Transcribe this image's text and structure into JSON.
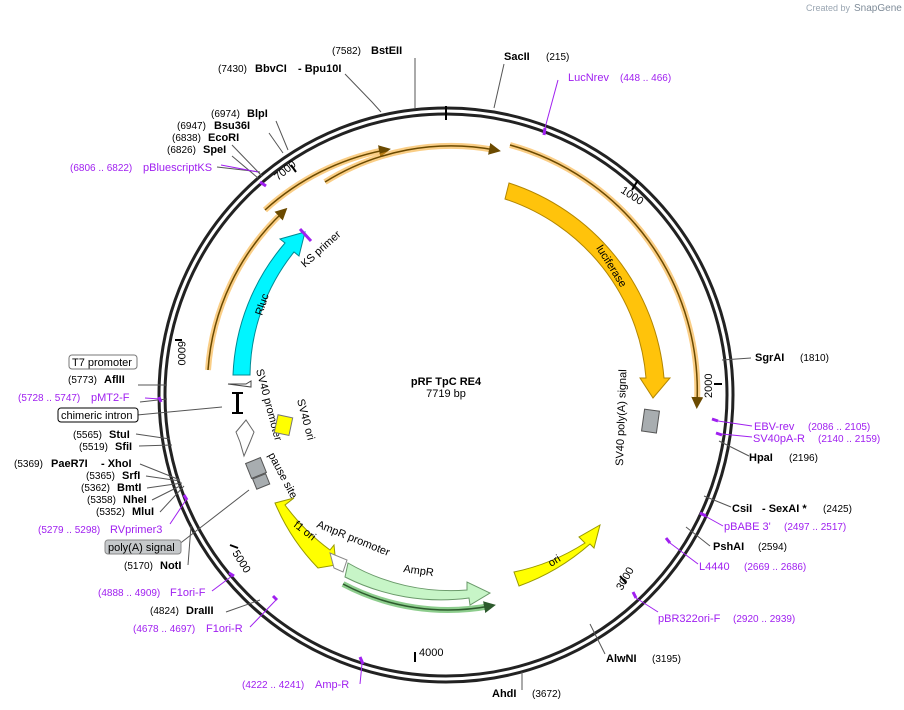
{
  "header": {
    "created_by": "Created by",
    "brand": "SnapGene"
  },
  "plasmid": {
    "name": "pRF TpC RE4",
    "size_label": "7719 bp",
    "length": 7719
  },
  "colors": {
    "backbone": "#222222",
    "luciferase": "#ffc30b",
    "rluc": "#00f5ff",
    "ampr": "#c7f5c7",
    "ori": "#ffff00",
    "promoter": "#ffffff",
    "polya": "#a8adb0",
    "primer": "#a020f0",
    "orange_arrow": "#f5a623",
    "green_arrow": "#5cb85c"
  },
  "ticks": [
    "1000",
    "2000",
    "3000",
    "4000",
    "5000",
    "6000",
    "7000"
  ],
  "enzymes": [
    {
      "id": "bstEII",
      "pos": "(7582)",
      "name": "BstEII"
    },
    {
      "id": "bbvCI",
      "pos": "(7430)",
      "name": "BbvCI",
      "extra": "- Bpu10I"
    },
    {
      "id": "sacII",
      "name": "SacII",
      "pos": "(215)"
    },
    {
      "id": "bplI",
      "pos": "(6974)",
      "name": "BlpI"
    },
    {
      "id": "bsu36I",
      "pos": "(6947)",
      "name": "Bsu36I"
    },
    {
      "id": "ecoRI",
      "pos": "(6838)",
      "name": "EcoRI"
    },
    {
      "id": "speI",
      "pos": "(6826)",
      "name": "SpeI"
    },
    {
      "id": "sgrAI",
      "name": "SgrAI",
      "pos": "(1810)"
    },
    {
      "id": "hpaI",
      "name": "HpaI",
      "pos": "(2196)"
    },
    {
      "id": "csiI",
      "name": "CsiI",
      "extra": "- SexAI *",
      "pos": "(2425)"
    },
    {
      "id": "pshAI",
      "name": "PshAI",
      "pos": "(2594)"
    },
    {
      "id": "alwNI",
      "name": "AlwNI",
      "pos": "(3195)"
    },
    {
      "id": "ahdI",
      "name": "AhdI",
      "pos": "(3672)"
    },
    {
      "id": "aflII",
      "pos": "(5773)",
      "name": "AflII"
    },
    {
      "id": "stuI",
      "pos": "(5565)",
      "name": "StuI"
    },
    {
      "id": "sfiI",
      "pos": "(5519)",
      "name": "SfiI"
    },
    {
      "id": "paeR7I",
      "pos": "(5369)",
      "name": "PaeR7I",
      "extra": "- XhoI"
    },
    {
      "id": "srfI",
      "pos": "(5365)",
      "name": "SrfI"
    },
    {
      "id": "bmtI",
      "pos": "(5362)",
      "name": "BmtI"
    },
    {
      "id": "nheI",
      "pos": "(5358)",
      "name": "NheI"
    },
    {
      "id": "mluI",
      "pos": "(5352)",
      "name": "MluI"
    },
    {
      "id": "notI",
      "pos": "(5170)",
      "name": "NotI"
    },
    {
      "id": "draIII",
      "pos": "(4824)",
      "name": "DraIII"
    }
  ],
  "primers": [
    {
      "id": "lucNrev",
      "name": "LucNrev",
      "range": "(448 .. 466)"
    },
    {
      "id": "pBluescriptKS",
      "name": "pBluescriptKS",
      "range": "(6806 .. 6822)"
    },
    {
      "id": "ebvRev",
      "name": "EBV-rev",
      "range": "(2086 .. 2105)"
    },
    {
      "id": "sv40pA",
      "name": "SV40pA-R",
      "range": "(2140 .. 2159)"
    },
    {
      "id": "pBABE3",
      "name": "pBABE 3'",
      "range": "(2497 .. 2517)"
    },
    {
      "id": "l4440",
      "name": "L4440",
      "range": "(2669 .. 2686)"
    },
    {
      "id": "pBR322ori",
      "name": "pBR322ori-F",
      "range": "(2920 .. 2939)"
    },
    {
      "id": "ampR",
      "name": "Amp-R",
      "range": "(4222 .. 4241)"
    },
    {
      "id": "f1oriR",
      "name": "F1ori-R",
      "range": "(4678 .. 4697)"
    },
    {
      "id": "f1oriF",
      "name": "F1ori-F",
      "range": "(4888 .. 4909)"
    },
    {
      "id": "rvprimer3",
      "name": "RVprimer3",
      "range": "(5279 .. 5298)"
    },
    {
      "id": "pMT2F",
      "name": "pMT2-F",
      "range": "(5728 .. 5747)"
    }
  ],
  "boxed_labels": {
    "t7": "T7 promoter",
    "chimeric": "chimeric intron",
    "polya": "poly(A) signal"
  },
  "features": {
    "luciferase": "luciferase",
    "rluc": "Rluc",
    "ks_primer": "KS primer",
    "sv40_polya": "SV40 poly(A) signal",
    "sv40_promoter": "SV40 promoter",
    "sv40_ori": "SV40 ori",
    "pause_site": "pause site",
    "f1_ori": "f1 ori",
    "ampr_promoter": "AmpR promoter",
    "ampr": "AmpR",
    "ori": "ori"
  }
}
